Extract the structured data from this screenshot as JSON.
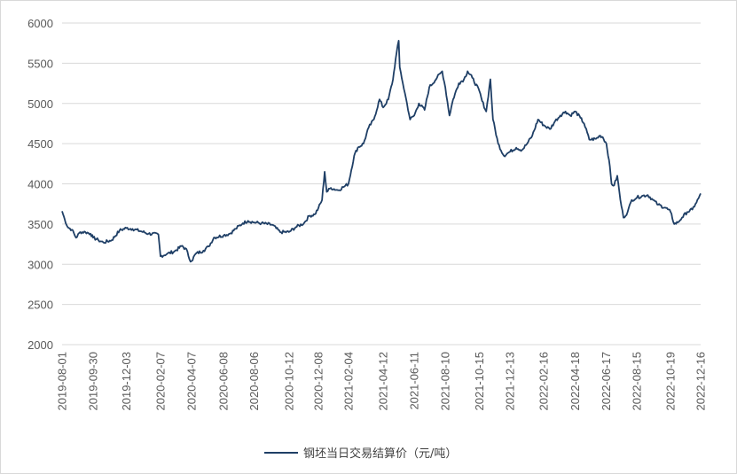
{
  "chart_data": {
    "type": "line",
    "xlabel": "",
    "ylabel": "",
    "ylim": [
      2000,
      6000
    ],
    "y_ticks": [
      2000,
      2500,
      3000,
      3500,
      4000,
      4500,
      5000,
      5500,
      6000
    ],
    "x_ticks": [
      "2019-08-01",
      "2019-09-30",
      "2019-12-03",
      "2020-02-07",
      "2020-04-07",
      "2020-06-08",
      "2020-08-06",
      "2020-10-12",
      "2020-12-08",
      "2021-02-04",
      "2021-04-12",
      "2021-06-11",
      "2021-08-10",
      "2021-10-15",
      "2021-12-13",
      "2022-02-16",
      "2022-04-18",
      "2022-06-17",
      "2022-08-15",
      "2022-10-19",
      "2022-12-16"
    ],
    "grid": "horizontal",
    "legend_position": "bottom",
    "line_color": "#1f3f66",
    "series": [
      {
        "name": "钢坯当日交易结算价（元/吨）",
        "points": [
          [
            "2019-08-01",
            3660
          ],
          [
            "2019-08-06",
            3560
          ],
          [
            "2019-08-12",
            3460
          ],
          [
            "2019-08-20",
            3430
          ],
          [
            "2019-08-28",
            3330
          ],
          [
            "2019-09-05",
            3400
          ],
          [
            "2019-09-15",
            3400
          ],
          [
            "2019-09-25",
            3380
          ],
          [
            "2019-09-30",
            3330
          ],
          [
            "2019-10-10",
            3300
          ],
          [
            "2019-10-20",
            3270
          ],
          [
            "2019-11-05",
            3300
          ],
          [
            "2019-11-20",
            3420
          ],
          [
            "2019-12-03",
            3450
          ],
          [
            "2019-12-15",
            3440
          ],
          [
            "2019-12-31",
            3410
          ],
          [
            "2020-01-15",
            3380
          ],
          [
            "2020-02-03",
            3370
          ],
          [
            "2020-02-07",
            3100
          ],
          [
            "2020-02-20",
            3130
          ],
          [
            "2020-03-05",
            3160
          ],
          [
            "2020-03-20",
            3230
          ],
          [
            "2020-03-30",
            3160
          ],
          [
            "2020-04-03",
            3060
          ],
          [
            "2020-04-07",
            3040
          ],
          [
            "2020-04-15",
            3130
          ],
          [
            "2020-04-30",
            3170
          ],
          [
            "2020-05-10",
            3220
          ],
          [
            "2020-05-20",
            3330
          ],
          [
            "2020-06-08",
            3360
          ],
          [
            "2020-06-20",
            3380
          ],
          [
            "2020-07-01",
            3440
          ],
          [
            "2020-07-15",
            3510
          ],
          [
            "2020-07-25",
            3540
          ],
          [
            "2020-08-06",
            3520
          ],
          [
            "2020-08-20",
            3510
          ],
          [
            "2020-09-10",
            3490
          ],
          [
            "2020-09-25",
            3400
          ],
          [
            "2020-10-12",
            3400
          ],
          [
            "2020-10-25",
            3460
          ],
          [
            "2020-11-10",
            3510
          ],
          [
            "2020-11-20",
            3600
          ],
          [
            "2020-12-01",
            3620
          ],
          [
            "2020-12-08",
            3700
          ],
          [
            "2020-12-15",
            3800
          ],
          [
            "2020-12-20",
            4150
          ],
          [
            "2020-12-24",
            3900
          ],
          [
            "2021-01-01",
            3950
          ],
          [
            "2021-01-15",
            3920
          ],
          [
            "2021-01-25",
            3960
          ],
          [
            "2021-02-04",
            4000
          ],
          [
            "2021-02-15",
            4350
          ],
          [
            "2021-02-22",
            4450
          ],
          [
            "2021-03-05",
            4500
          ],
          [
            "2021-03-15",
            4700
          ],
          [
            "2021-03-25",
            4800
          ],
          [
            "2021-04-05",
            5050
          ],
          [
            "2021-04-12",
            4950
          ],
          [
            "2021-04-22",
            5050
          ],
          [
            "2021-05-01",
            5300
          ],
          [
            "2021-05-06",
            5550
          ],
          [
            "2021-05-12",
            5780
          ],
          [
            "2021-05-14",
            5450
          ],
          [
            "2021-05-20",
            5250
          ],
          [
            "2021-05-28",
            5000
          ],
          [
            "2021-06-03",
            4800
          ],
          [
            "2021-06-11",
            4850
          ],
          [
            "2021-06-20",
            5000
          ],
          [
            "2021-07-01",
            4920
          ],
          [
            "2021-07-10",
            5200
          ],
          [
            "2021-07-25",
            5320
          ],
          [
            "2021-08-04",
            5400
          ],
          [
            "2021-08-10",
            5200
          ],
          [
            "2021-08-18",
            4850
          ],
          [
            "2021-08-25",
            5050
          ],
          [
            "2021-09-05",
            5250
          ],
          [
            "2021-09-15",
            5300
          ],
          [
            "2021-09-22",
            5400
          ],
          [
            "2021-10-01",
            5320
          ],
          [
            "2021-10-15",
            5150
          ],
          [
            "2021-10-20",
            5030
          ],
          [
            "2021-10-28",
            4900
          ],
          [
            "2021-11-05",
            5300
          ],
          [
            "2021-11-10",
            4800
          ],
          [
            "2021-11-20",
            4500
          ],
          [
            "2021-12-01",
            4350
          ],
          [
            "2021-12-13",
            4400
          ],
          [
            "2021-12-25",
            4450
          ],
          [
            "2022-01-05",
            4420
          ],
          [
            "2022-01-15",
            4500
          ],
          [
            "2022-01-25",
            4600
          ],
          [
            "2022-02-05",
            4800
          ],
          [
            "2022-02-16",
            4730
          ],
          [
            "2022-02-28",
            4680
          ],
          [
            "2022-03-10",
            4780
          ],
          [
            "2022-03-20",
            4850
          ],
          [
            "2022-03-30",
            4900
          ],
          [
            "2022-04-08",
            4850
          ],
          [
            "2022-04-18",
            4900
          ],
          [
            "2022-04-28",
            4820
          ],
          [
            "2022-05-05",
            4750
          ],
          [
            "2022-05-15",
            4550
          ],
          [
            "2022-05-28",
            4560
          ],
          [
            "2022-06-05",
            4600
          ],
          [
            "2022-06-10",
            4580
          ],
          [
            "2022-06-17",
            4500
          ],
          [
            "2022-06-22",
            4300
          ],
          [
            "2022-06-27",
            4000
          ],
          [
            "2022-07-02",
            3980
          ],
          [
            "2022-07-08",
            4100
          ],
          [
            "2022-07-14",
            3800
          ],
          [
            "2022-07-20",
            3580
          ],
          [
            "2022-07-28",
            3650
          ],
          [
            "2022-08-05",
            3800
          ],
          [
            "2022-08-15",
            3830
          ],
          [
            "2022-08-25",
            3850
          ],
          [
            "2022-09-05",
            3860
          ],
          [
            "2022-09-15",
            3800
          ],
          [
            "2022-09-25",
            3740
          ],
          [
            "2022-10-10",
            3700
          ],
          [
            "2022-10-19",
            3650
          ],
          [
            "2022-10-26",
            3500
          ],
          [
            "2022-11-02",
            3520
          ],
          [
            "2022-11-10",
            3580
          ],
          [
            "2022-11-20",
            3650
          ],
          [
            "2022-11-30",
            3680
          ],
          [
            "2022-12-06",
            3750
          ],
          [
            "2022-12-12",
            3820
          ],
          [
            "2022-12-16",
            3880
          ]
        ]
      }
    ]
  }
}
